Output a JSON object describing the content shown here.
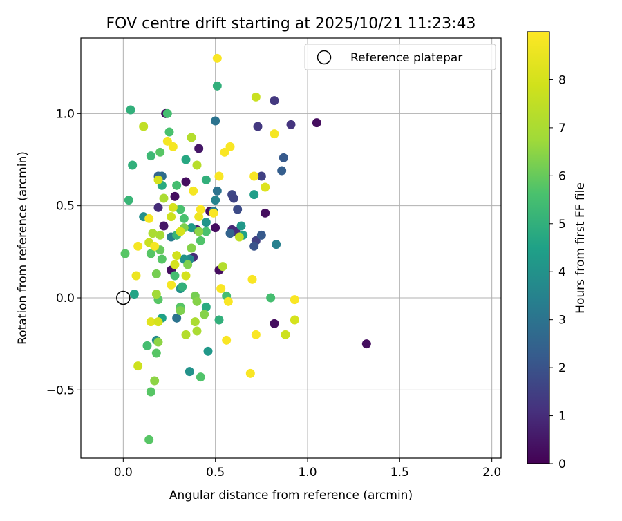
{
  "chart_data": {
    "type": "scatter",
    "title": "FOV centre drift starting at 2025/10/21 11:23:43",
    "xlabel": "Angular distance from reference (arcmin)",
    "ylabel": "Rotation from reference (arcmin)",
    "xlim": [
      -0.23,
      2.05
    ],
    "ylim": [
      -0.87,
      1.41
    ],
    "xticks": [
      0.0,
      0.5,
      1.0,
      1.5,
      2.0
    ],
    "xtick_labels": [
      "0.0",
      "0.5",
      "1.0",
      "1.5",
      "2.0"
    ],
    "yticks": [
      -0.5,
      0.0,
      0.5,
      1.0
    ],
    "ytick_labels": [
      "−0.5",
      "0.0",
      "0.5",
      "1.0"
    ],
    "grid": true,
    "legend": {
      "position": "top-right",
      "entries": [
        "Reference platepar"
      ]
    },
    "reference_point": {
      "x": 0.0,
      "y": 0.0
    },
    "colorbar": {
      "label": "Hours from first FF file",
      "min": 0,
      "max": 9,
      "ticks": [
        0,
        1,
        2,
        3,
        4,
        5,
        6,
        7,
        8
      ],
      "tick_labels": [
        "0",
        "1",
        "2",
        "3",
        "4",
        "5",
        "6",
        "7",
        "8"
      ],
      "colormap": "viridis"
    },
    "points": [
      {
        "x": 0.23,
        "y": 1.0,
        "h": 0.3
      },
      {
        "x": 0.26,
        "y": 0.15,
        "h": 0.3
      },
      {
        "x": 0.28,
        "y": 0.55,
        "h": 0.3
      },
      {
        "x": 0.34,
        "y": 0.63,
        "h": 0.3
      },
      {
        "x": 0.41,
        "y": 0.81,
        "h": 0.5
      },
      {
        "x": 0.47,
        "y": 0.47,
        "h": 0.3
      },
      {
        "x": 0.5,
        "y": 0.38,
        "h": 0.3
      },
      {
        "x": 0.52,
        "y": 0.15,
        "h": 0.3
      },
      {
        "x": 0.22,
        "y": 0.39,
        "h": 0.5
      },
      {
        "x": 0.82,
        "y": -0.14,
        "h": 0.3
      },
      {
        "x": 0.77,
        "y": 0.46,
        "h": 0.3
      },
      {
        "x": 1.05,
        "y": 0.95,
        "h": 0.3
      },
      {
        "x": 1.32,
        "y": -0.25,
        "h": 0.3
      },
      {
        "x": 0.19,
        "y": 0.49,
        "h": 1.0
      },
      {
        "x": 0.4,
        "y": 0.37,
        "h": 0.8
      },
      {
        "x": 0.59,
        "y": 0.37,
        "h": 0.9
      },
      {
        "x": 0.61,
        "y": 0.36,
        "h": 1.0
      },
      {
        "x": 0.38,
        "y": 0.22,
        "h": 1.0
      },
      {
        "x": 0.72,
        "y": 0.31,
        "h": 1.5
      },
      {
        "x": 0.73,
        "y": 0.93,
        "h": 1.3
      },
      {
        "x": 0.82,
        "y": 1.07,
        "h": 1.3
      },
      {
        "x": 0.91,
        "y": 0.94,
        "h": 1.2
      },
      {
        "x": 0.75,
        "y": 0.66,
        "h": 1.5
      },
      {
        "x": 0.59,
        "y": 0.56,
        "h": 1.7
      },
      {
        "x": 0.6,
        "y": 0.54,
        "h": 1.6
      },
      {
        "x": 0.62,
        "y": 0.48,
        "h": 1.8
      },
      {
        "x": 0.71,
        "y": 0.28,
        "h": 2.0
      },
      {
        "x": 0.75,
        "y": 0.34,
        "h": 2.2
      },
      {
        "x": 0.87,
        "y": 0.76,
        "h": 2.2
      },
      {
        "x": 0.86,
        "y": 0.69,
        "h": 2.3
      },
      {
        "x": 0.19,
        "y": 0.66,
        "h": 2.5
      },
      {
        "x": 0.21,
        "y": 0.66,
        "h": 2.8
      },
      {
        "x": 0.58,
        "y": 0.35,
        "h": 2.5
      },
      {
        "x": 0.5,
        "y": 0.96,
        "h": 3.0
      },
      {
        "x": 0.26,
        "y": 0.33,
        "h": 3.3
      },
      {
        "x": 0.51,
        "y": 0.58,
        "h": 3.0
      },
      {
        "x": 0.5,
        "y": 0.53,
        "h": 3.5
      },
      {
        "x": 0.29,
        "y": -0.11,
        "h": 3.0
      },
      {
        "x": 0.83,
        "y": 0.29,
        "h": 3.4
      },
      {
        "x": 0.49,
        "y": 0.47,
        "h": 3.2
      },
      {
        "x": 0.36,
        "y": -0.4,
        "h": 4.0
      },
      {
        "x": 0.46,
        "y": -0.29,
        "h": 4.2
      },
      {
        "x": 0.36,
        "y": 0.21,
        "h": 3.7
      },
      {
        "x": 0.31,
        "y": 0.05,
        "h": 4.0
      },
      {
        "x": 0.64,
        "y": 0.39,
        "h": 4.2
      },
      {
        "x": 0.18,
        "y": -0.23,
        "h": 3.8
      },
      {
        "x": 0.11,
        "y": 0.44,
        "h": 3.9
      },
      {
        "x": 0.37,
        "y": 0.38,
        "h": 4.3
      },
      {
        "x": 0.65,
        "y": 0.34,
        "h": 4.5
      },
      {
        "x": 0.71,
        "y": 0.56,
        "h": 4.4
      },
      {
        "x": 0.45,
        "y": 0.41,
        "h": 4.1
      },
      {
        "x": 0.33,
        "y": 0.21,
        "h": 4.0
      },
      {
        "x": 0.21,
        "y": 0.61,
        "h": 4.8
      },
      {
        "x": 0.34,
        "y": 0.75,
        "h": 4.7
      },
      {
        "x": 0.51,
        "y": 1.15,
        "h": 5.0
      },
      {
        "x": 0.04,
        "y": 1.02,
        "h": 5.0
      },
      {
        "x": 0.05,
        "y": 0.72,
        "h": 5.0
      },
      {
        "x": 0.03,
        "y": 0.53,
        "h": 5.2
      },
      {
        "x": 0.29,
        "y": 0.34,
        "h": 5.2
      },
      {
        "x": 0.45,
        "y": 0.64,
        "h": 5.0
      },
      {
        "x": 0.06,
        "y": 0.02,
        "h": 4.6
      },
      {
        "x": 0.21,
        "y": -0.11,
        "h": 4.5
      },
      {
        "x": 0.45,
        "y": -0.05,
        "h": 4.8
      },
      {
        "x": 0.52,
        "y": -0.12,
        "h": 5.0
      },
      {
        "x": 0.56,
        "y": 0.01,
        "h": 5.5
      },
      {
        "x": 0.8,
        "y": 0.0,
        "h": 5.5
      },
      {
        "x": 0.32,
        "y": 0.06,
        "h": 5.0
      },
      {
        "x": 0.15,
        "y": 0.77,
        "h": 5.3
      },
      {
        "x": 0.24,
        "y": 1.0,
        "h": 5.5
      },
      {
        "x": 0.29,
        "y": 0.61,
        "h": 5.5
      },
      {
        "x": 0.2,
        "y": 0.79,
        "h": 5.8
      },
      {
        "x": 0.25,
        "y": 0.9,
        "h": 5.6
      },
      {
        "x": 0.31,
        "y": 0.48,
        "h": 5.6
      },
      {
        "x": 0.33,
        "y": 0.43,
        "h": 5.6
      },
      {
        "x": 0.45,
        "y": 0.36,
        "h": 5.6
      },
      {
        "x": 0.42,
        "y": 0.31,
        "h": 5.7
      },
      {
        "x": 0.13,
        "y": -0.26,
        "h": 5.5
      },
      {
        "x": 0.18,
        "y": -0.3,
        "h": 5.8
      },
      {
        "x": 0.01,
        "y": 0.24,
        "h": 5.8
      },
      {
        "x": 0.15,
        "y": 0.24,
        "h": 5.8
      },
      {
        "x": 0.21,
        "y": 0.21,
        "h": 5.8
      },
      {
        "x": 0.28,
        "y": 0.12,
        "h": 5.5
      },
      {
        "x": 0.42,
        "y": -0.43,
        "h": 5.7
      },
      {
        "x": 0.14,
        "y": -0.77,
        "h": 5.8
      },
      {
        "x": 0.15,
        "y": -0.51,
        "h": 5.8
      },
      {
        "x": 0.19,
        "y": -0.01,
        "h": 5.8
      },
      {
        "x": 0.2,
        "y": 0.26,
        "h": 6.0
      },
      {
        "x": 0.18,
        "y": 0.13,
        "h": 6.2
      },
      {
        "x": 0.17,
        "y": -0.45,
        "h": 6.5
      },
      {
        "x": 0.19,
        "y": -0.24,
        "h": 6.5
      },
      {
        "x": 0.31,
        "y": -0.05,
        "h": 5.8
      },
      {
        "x": 0.33,
        "y": 0.38,
        "h": 6.3
      },
      {
        "x": 0.35,
        "y": 0.18,
        "h": 6.3
      },
      {
        "x": 0.37,
        "y": 0.27,
        "h": 6.4
      },
      {
        "x": 0.31,
        "y": -0.07,
        "h": 6.3
      },
      {
        "x": 0.39,
        "y": 0.01,
        "h": 6.2
      },
      {
        "x": 0.4,
        "y": -0.02,
        "h": 6.4
      },
      {
        "x": 0.41,
        "y": 0.36,
        "h": 6.5
      },
      {
        "x": 0.44,
        "y": -0.09,
        "h": 6.4
      },
      {
        "x": 0.18,
        "y": 0.02,
        "h": 6.8
      },
      {
        "x": 0.2,
        "y": 0.34,
        "h": 6.9
      },
      {
        "x": 0.22,
        "y": 0.54,
        "h": 7.0
      },
      {
        "x": 0.16,
        "y": 0.35,
        "h": 7.0
      },
      {
        "x": 0.39,
        "y": -0.13,
        "h": 7.0
      },
      {
        "x": 0.4,
        "y": -0.18,
        "h": 7.0
      },
      {
        "x": 0.34,
        "y": -0.2,
        "h": 7.2
      },
      {
        "x": 0.37,
        "y": 0.87,
        "h": 7.2
      },
      {
        "x": 0.4,
        "y": 0.72,
        "h": 7.3
      },
      {
        "x": 0.54,
        "y": 0.17,
        "h": 7.2
      },
      {
        "x": 0.63,
        "y": 0.33,
        "h": 7.5
      },
      {
        "x": 0.72,
        "y": 1.09,
        "h": 7.7
      },
      {
        "x": 0.88,
        "y": -0.2,
        "h": 7.8
      },
      {
        "x": 0.93,
        "y": -0.12,
        "h": 8.0
      },
      {
        "x": 0.77,
        "y": 0.6,
        "h": 8.2
      },
      {
        "x": 0.08,
        "y": -0.37,
        "h": 7.8
      },
      {
        "x": 0.11,
        "y": 0.93,
        "h": 7.5
      },
      {
        "x": 0.14,
        "y": 0.3,
        "h": 7.7
      },
      {
        "x": 0.15,
        "y": -0.13,
        "h": 8.3
      },
      {
        "x": 0.19,
        "y": -0.13,
        "h": 8.0
      },
      {
        "x": 0.26,
        "y": 0.44,
        "h": 7.8
      },
      {
        "x": 0.27,
        "y": 0.49,
        "h": 8.0
      },
      {
        "x": 0.28,
        "y": 0.18,
        "h": 8.0
      },
      {
        "x": 0.29,
        "y": 0.23,
        "h": 7.9
      },
      {
        "x": 0.31,
        "y": 0.36,
        "h": 8.0
      },
      {
        "x": 0.34,
        "y": 0.12,
        "h": 8.0
      },
      {
        "x": 0.19,
        "y": 0.64,
        "h": 8.0
      },
      {
        "x": 0.07,
        "y": 0.12,
        "h": 8.6
      },
      {
        "x": 0.08,
        "y": 0.28,
        "h": 8.8
      },
      {
        "x": 0.14,
        "y": 0.43,
        "h": 8.8
      },
      {
        "x": 0.17,
        "y": 0.28,
        "h": 8.8
      },
      {
        "x": 0.26,
        "y": 0.07,
        "h": 8.8
      },
      {
        "x": 0.27,
        "y": 0.82,
        "h": 8.8
      },
      {
        "x": 0.24,
        "y": 0.85,
        "h": 8.8
      },
      {
        "x": 0.38,
        "y": 0.58,
        "h": 8.8
      },
      {
        "x": 0.41,
        "y": 0.44,
        "h": 8.6
      },
      {
        "x": 0.42,
        "y": 0.48,
        "h": 8.9
      },
      {
        "x": 0.49,
        "y": 0.46,
        "h": 8.9
      },
      {
        "x": 0.51,
        "y": 1.3,
        "h": 8.9
      },
      {
        "x": 0.52,
        "y": 0.66,
        "h": 8.9
      },
      {
        "x": 0.55,
        "y": 0.79,
        "h": 8.9
      },
      {
        "x": 0.58,
        "y": 0.82,
        "h": 8.9
      },
      {
        "x": 0.53,
        "y": 0.05,
        "h": 8.9
      },
      {
        "x": 0.56,
        "y": -0.23,
        "h": 8.9
      },
      {
        "x": 0.57,
        "y": -0.02,
        "h": 8.9
      },
      {
        "x": 0.69,
        "y": -0.41,
        "h": 8.9
      },
      {
        "x": 0.7,
        "y": 0.1,
        "h": 8.9
      },
      {
        "x": 0.72,
        "y": -0.2,
        "h": 8.9
      },
      {
        "x": 0.71,
        "y": 0.66,
        "h": 8.9
      },
      {
        "x": 0.82,
        "y": 0.89,
        "h": 8.8
      },
      {
        "x": 0.93,
        "y": -0.01,
        "h": 8.9
      }
    ]
  }
}
